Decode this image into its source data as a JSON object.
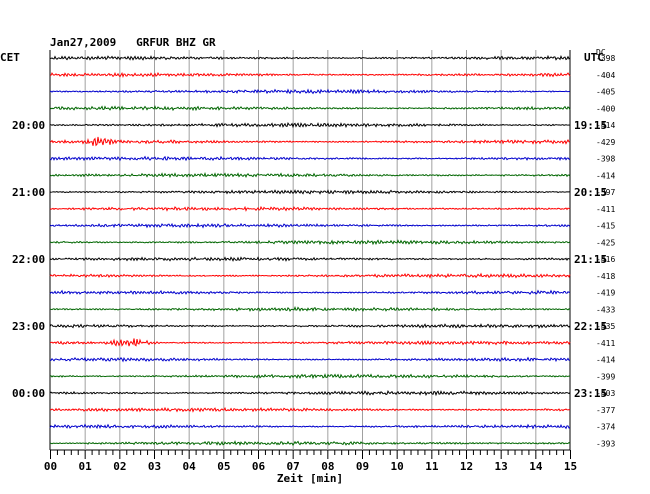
{
  "chart_data": {
    "type": "line",
    "title": "Jan27,2009   GRFUR BHZ GR",
    "date": "Jan27,2009",
    "station": "GRFUR BHZ GR",
    "left_axis_label": "CET",
    "right_axis_label": "UTC",
    "dc_header": "DC",
    "xlabel": "Zeit [min]",
    "x_ticks": [
      "00",
      "01",
      "02",
      "03",
      "04",
      "05",
      "06",
      "07",
      "08",
      "09",
      "10",
      "11",
      "12",
      "13",
      "14",
      "15"
    ],
    "xlim": [
      0,
      15
    ],
    "trace_colors": [
      "#000000",
      "#ff0000",
      "#0000cc",
      "#006600"
    ],
    "traces_per_hour": 4,
    "minutes_per_trace": 15,
    "left_hour_labels": [
      {
        "label": "20:00",
        "trace": 4
      },
      {
        "label": "21:00",
        "trace": 8
      },
      {
        "label": "22:00",
        "trace": 12
      },
      {
        "label": "23:00",
        "trace": 16
      },
      {
        "label": "00:00",
        "trace": 20
      }
    ],
    "right_hour_labels": [
      {
        "label": "19:15",
        "trace": 4
      },
      {
        "label": "20:15",
        "trace": 8
      },
      {
        "label": "21:15",
        "trace": 12
      },
      {
        "label": "22:15",
        "trace": 16
      },
      {
        "label": "23:15",
        "trace": 20
      }
    ],
    "dc_offsets": [
      "-398",
      "-404",
      "-405",
      "-400",
      "-414",
      "-429",
      "-398",
      "-414",
      "-397",
      "-411",
      "-415",
      "-425",
      "-416",
      "-418",
      "-419",
      "-433",
      "-435",
      "-411",
      "-414",
      "-399",
      "-403",
      "-377",
      "-374",
      "-393"
    ],
    "events": [
      {
        "trace": 5,
        "minute_start": 0.9,
        "minute_end": 2.1
      },
      {
        "trace": 17,
        "minute_start": 1.5,
        "minute_end": 3.1
      }
    ]
  }
}
